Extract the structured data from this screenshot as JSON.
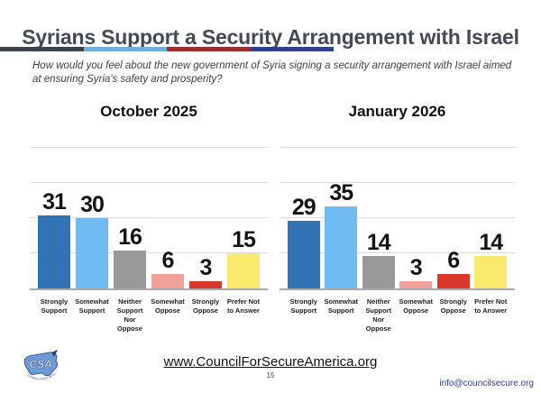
{
  "slide": {
    "title": "Syrians Support a Security Arrangement with Israel",
    "question": "How would you feel about the new government of Syria signing a security arrangement with Israel aimed at ensuring Syria's safety and prosperity?",
    "divider_colors": [
      "#3b4248",
      "#6faedd",
      "#9c2f2b",
      "#2e3e90"
    ]
  },
  "chart_data": [
    {
      "type": "bar",
      "title": "October 2025",
      "categories": [
        "Strongly Support",
        "Somewhat Support",
        "Neither Support Nor Oppose",
        "Somewhat Oppose",
        "Strongly Oppose",
        "Prefer Not to Answer"
      ],
      "values": [
        31,
        30,
        16,
        6,
        3,
        15
      ],
      "colors": [
        "#3273b5",
        "#6fbbf2",
        "#999999",
        "#f2a19b",
        "#d9382a",
        "#faea6e"
      ],
      "ylim": [
        0,
        60
      ],
      "gridline_interval": 15,
      "grid": true,
      "data_labels": true,
      "legend": false,
      "xlabel": "",
      "ylabel": ""
    },
    {
      "type": "bar",
      "title": "January 2026",
      "categories": [
        "Strongly Support",
        "Somewhat Support",
        "Neither Support Nor Oppose",
        "Somewhat Oppose",
        "Strongly Oppose",
        "Prefer Not to Answer"
      ],
      "values": [
        29,
        35,
        14,
        3,
        6,
        14
      ],
      "colors": [
        "#3273b5",
        "#6fbbf2",
        "#999999",
        "#f2a19b",
        "#d9382a",
        "#faea6e"
      ],
      "ylim": [
        0,
        60
      ],
      "gridline_interval": 15,
      "grid": true,
      "data_labels": true,
      "legend": false,
      "xlabel": "",
      "ylabel": ""
    }
  ],
  "footer": {
    "website": "www.CouncilForSecureAmerica.org",
    "page_number": "15",
    "email": "info@councilsecure.org",
    "logo_acronym": "CSA",
    "logo_caption": "COUNCIL FOR A SECURE AMERICA"
  }
}
